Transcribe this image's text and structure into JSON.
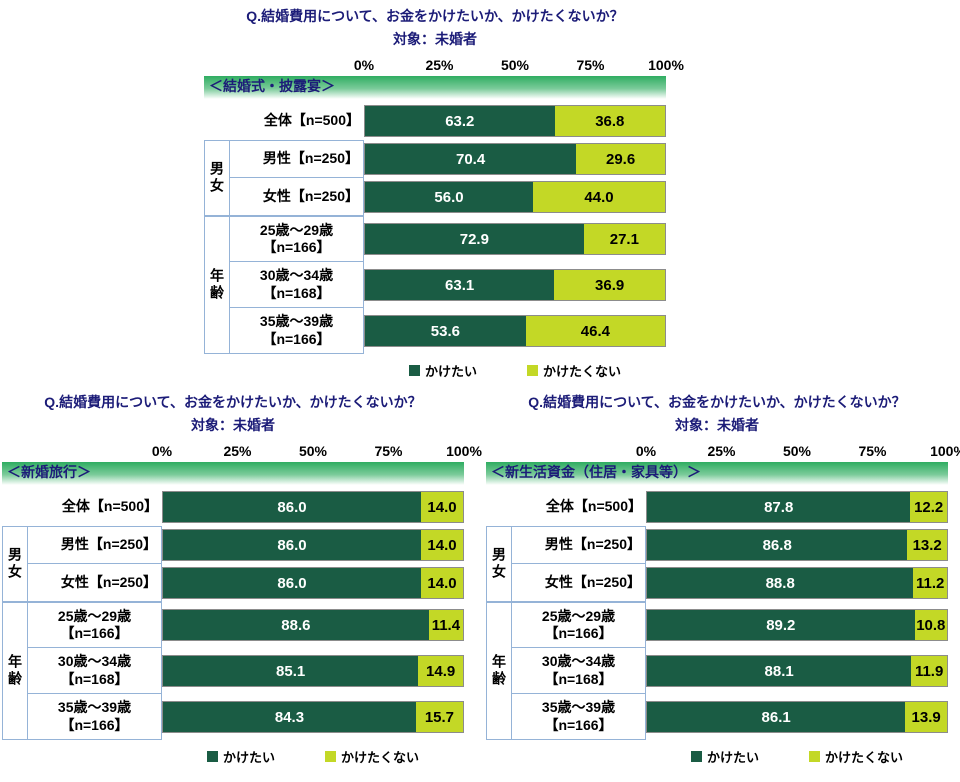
{
  "colors": {
    "want_green": "#1a5c44",
    "not_want_yellow_green": "#c3d826",
    "band_green": "#2fad61",
    "title_navy": "#1c1c78",
    "box_border": "#95b3d7"
  },
  "legend": [
    {
      "key": "want",
      "label": "かけたい",
      "color": "#1a5c44"
    },
    {
      "key": "not-want",
      "label": "かけたくない",
      "color": "#c3d826"
    }
  ],
  "chart_data": [
    {
      "type": "bar",
      "stacked": true,
      "orientation": "horizontal",
      "title": "Q.結婚費用について、お金をかけたいか、かけたくないか？",
      "subtitle": "対象：未婚者",
      "section": "＜結婚式・披露宴＞",
      "xlim": [
        0,
        100
      ],
      "x_ticks": [
        "0%",
        "25%",
        "50%",
        "75%",
        "100%"
      ],
      "legend_labels": [
        "かけたい",
        "かけたくない"
      ],
      "categories": [
        "全体【n=500】",
        "男性【n=250】",
        "女性【n=250】",
        "25歳～29歳【n=166】",
        "30歳～34歳【n=168】",
        "35歳～39歳【n=166】"
      ],
      "series": [
        {
          "name": "かけたい",
          "values": [
            63.2,
            70.4,
            56.0,
            72.9,
            63.1,
            53.6
          ]
        },
        {
          "name": "かけたくない",
          "values": [
            36.8,
            29.6,
            44.0,
            27.1,
            36.9,
            46.4
          ]
        }
      ],
      "rows": [
        {
          "label": "全体【n=500】",
          "sub": "",
          "group": "",
          "values": [
            "63.2",
            "36.8"
          ]
        },
        {
          "label": "男性【n=250】",
          "sub": "",
          "group": "男女",
          "group_first": true,
          "group_span": 2,
          "values": [
            "70.4",
            "29.6"
          ]
        },
        {
          "label": "女性【n=250】",
          "sub": "",
          "group": "男女",
          "values": [
            "56.0",
            "44.0"
          ]
        },
        {
          "label": "25歳～29歳",
          "sub": "【n=166】",
          "group": "年齢",
          "group_first": true,
          "group_span": 3,
          "values": [
            "72.9",
            "27.1"
          ]
        },
        {
          "label": "30歳～34歳",
          "sub": "【n=168】",
          "group": "年齢",
          "values": [
            "63.1",
            "36.9"
          ]
        },
        {
          "label": "35歳～39歳",
          "sub": "【n=166】",
          "group": "年齢",
          "values": [
            "53.6",
            "46.4"
          ]
        }
      ]
    },
    {
      "type": "bar",
      "stacked": true,
      "orientation": "horizontal",
      "title": "Q.結婚費用について、お金をかけたいか、かけたくないか？",
      "subtitle": "対象：未婚者",
      "section": "＜新婚旅行＞",
      "xlim": [
        0,
        100
      ],
      "x_ticks": [
        "0%",
        "25%",
        "50%",
        "75%",
        "100%"
      ],
      "legend_labels": [
        "かけたい",
        "かけたくない"
      ],
      "categories": [
        "全体【n=500】",
        "男性【n=250】",
        "女性【n=250】",
        "25歳～29歳【n=166】",
        "30歳～34歳【n=168】",
        "35歳～39歳【n=166】"
      ],
      "series": [
        {
          "name": "かけたい",
          "values": [
            86.0,
            86.0,
            86.0,
            88.6,
            85.1,
            84.3
          ]
        },
        {
          "name": "かけたくない",
          "values": [
            14.0,
            14.0,
            14.0,
            11.4,
            14.9,
            15.7
          ]
        }
      ],
      "rows": [
        {
          "label": "全体【n=500】",
          "sub": "",
          "group": "",
          "values": [
            "86.0",
            "14.0"
          ]
        },
        {
          "label": "男性【n=250】",
          "sub": "",
          "group": "男女",
          "group_first": true,
          "group_span": 2,
          "values": [
            "86.0",
            "14.0"
          ]
        },
        {
          "label": "女性【n=250】",
          "sub": "",
          "group": "男女",
          "values": [
            "86.0",
            "14.0"
          ]
        },
        {
          "label": "25歳～29歳",
          "sub": "【n=166】",
          "group": "年齢",
          "group_first": true,
          "group_span": 3,
          "values": [
            "88.6",
            "11.4"
          ]
        },
        {
          "label": "30歳～34歳",
          "sub": "【n=168】",
          "group": "年齢",
          "values": [
            "85.1",
            "14.9"
          ]
        },
        {
          "label": "35歳～39歳",
          "sub": "【n=166】",
          "group": "年齢",
          "values": [
            "84.3",
            "15.7"
          ]
        }
      ]
    },
    {
      "type": "bar",
      "stacked": true,
      "orientation": "horizontal",
      "title": "Q.結婚費用について、お金をかけたいか、かけたくないか？",
      "subtitle": "対象：未婚者",
      "section": "＜新生活資金（住居・家具等）＞",
      "xlim": [
        0,
        100
      ],
      "x_ticks": [
        "0%",
        "25%",
        "50%",
        "75%",
        "100%"
      ],
      "legend_labels": [
        "かけたい",
        "かけたくない"
      ],
      "categories": [
        "全体【n=500】",
        "男性【n=250】",
        "女性【n=250】",
        "25歳～29歳【n=166】",
        "30歳～34歳【n=168】",
        "35歳～39歳【n=166】"
      ],
      "series": [
        {
          "name": "かけたい",
          "values": [
            87.8,
            86.8,
            88.8,
            89.2,
            88.1,
            86.1
          ]
        },
        {
          "name": "かけたくない",
          "values": [
            12.2,
            13.2,
            11.2,
            10.8,
            11.9,
            13.9
          ]
        }
      ],
      "rows": [
        {
          "label": "全体【n=500】",
          "sub": "",
          "group": "",
          "values": [
            "87.8",
            "12.2"
          ]
        },
        {
          "label": "男性【n=250】",
          "sub": "",
          "group": "男女",
          "group_first": true,
          "group_span": 2,
          "values": [
            "86.8",
            "13.2"
          ]
        },
        {
          "label": "女性【n=250】",
          "sub": "",
          "group": "男女",
          "values": [
            "88.8",
            "11.2"
          ]
        },
        {
          "label": "25歳～29歳",
          "sub": "【n=166】",
          "group": "年齢",
          "group_first": true,
          "group_span": 3,
          "values": [
            "89.2",
            "10.8"
          ]
        },
        {
          "label": "30歳～34歳",
          "sub": "【n=168】",
          "group": "年齢",
          "values": [
            "88.1",
            "11.9"
          ]
        },
        {
          "label": "35歳～39歳",
          "sub": "【n=166】",
          "group": "年齢",
          "values": [
            "86.1",
            "13.9"
          ]
        }
      ]
    }
  ]
}
